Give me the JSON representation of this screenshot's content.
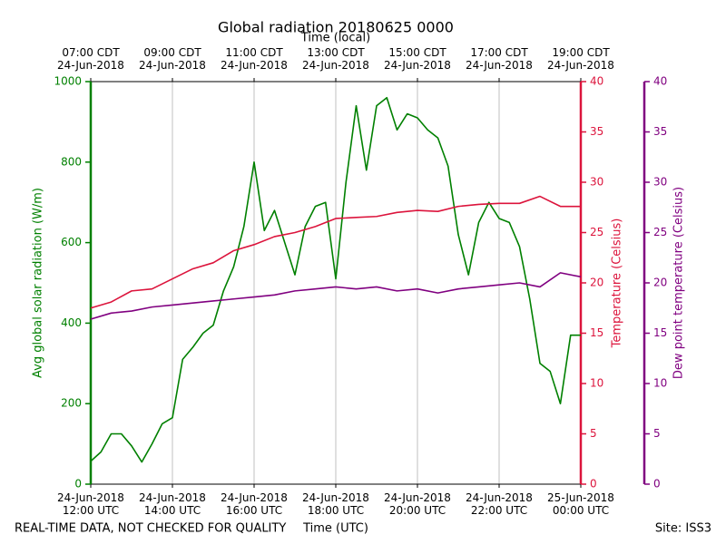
{
  "chart_data": {
    "type": "line",
    "title": "Global radiation 20180625 0000",
    "x_label": "Time (UTC)",
    "x2_label": "Time (local)",
    "footer_left": "REAL-TIME DATA, NOT CHECKED FOR QUALITY",
    "footer_right": "Site: ISS3",
    "y_label": "Avg global solar radiation (W/m)",
    "y2_label": "Temperature (Celsius)",
    "y3_label": "Dew point temperature (Celsius)",
    "xlim": [
      "2018-06-24T12:00",
      "2018-06-25T00:00"
    ],
    "xticks": [
      {
        "value": "2018-06-24T12:00",
        "label": "24-Jun-2018\n12:00 UTC"
      },
      {
        "value": "2018-06-24T14:00",
        "label": "24-Jun-2018\n14:00 UTC"
      },
      {
        "value": "2018-06-24T16:00",
        "label": "24-Jun-2018\n16:00 UTC"
      },
      {
        "value": "2018-06-24T18:00",
        "label": "24-Jun-2018\n18:00 UTC"
      },
      {
        "value": "2018-06-24T20:00",
        "label": "24-Jun-2018\n20:00 UTC"
      },
      {
        "value": "2018-06-24T22:00",
        "label": "24-Jun-2018\n22:00 UTC"
      },
      {
        "value": "2018-06-25T00:00",
        "label": "25-Jun-2018\n00:00 UTC"
      }
    ],
    "x2ticks": [
      {
        "value": "2018-06-24T12:00",
        "label": "07:00 CDT\n24-Jun-2018"
      },
      {
        "value": "2018-06-24T14:00",
        "label": "09:00 CDT\n24-Jun-2018"
      },
      {
        "value": "2018-06-24T16:00",
        "label": "11:00 CDT\n24-Jun-2018"
      },
      {
        "value": "2018-06-24T18:00",
        "label": "13:00 CDT\n24-Jun-2018"
      },
      {
        "value": "2018-06-24T20:00",
        "label": "15:00 CDT\n24-Jun-2018"
      },
      {
        "value": "2018-06-24T22:00",
        "label": "17:00 CDT\n24-Jun-2018"
      },
      {
        "value": "2018-06-25T00:00",
        "label": "19:00 CDT\n24-Jun-2018"
      }
    ],
    "ylim": [
      0,
      1000
    ],
    "yticks": [
      0,
      200,
      400,
      600,
      800,
      1000
    ],
    "y_color": "#008000",
    "y2lim": [
      0,
      40
    ],
    "y2ticks": [
      0,
      5,
      10,
      15,
      20,
      25,
      30,
      35,
      40
    ],
    "y2_color": "#dc143c",
    "y3lim": [
      0,
      40
    ],
    "y3ticks": [
      0,
      5,
      10,
      15,
      20,
      25,
      30,
      35,
      40
    ],
    "y3_color": "#800080",
    "grid": true,
    "series": [
      {
        "name": "Avg global solar radiation",
        "color": "#008000",
        "axis": "y",
        "x": [
          "2018-06-24T12:00",
          "2018-06-24T12:15",
          "2018-06-24T12:30",
          "2018-06-24T12:45",
          "2018-06-24T13:00",
          "2018-06-24T13:15",
          "2018-06-24T13:30",
          "2018-06-24T13:45",
          "2018-06-24T14:00",
          "2018-06-24T14:15",
          "2018-06-24T14:30",
          "2018-06-24T14:45",
          "2018-06-24T15:00",
          "2018-06-24T15:15",
          "2018-06-24T15:30",
          "2018-06-24T15:45",
          "2018-06-24T16:00",
          "2018-06-24T16:15",
          "2018-06-24T16:30",
          "2018-06-24T16:45",
          "2018-06-24T17:00",
          "2018-06-24T17:15",
          "2018-06-24T17:30",
          "2018-06-24T17:45",
          "2018-06-24T18:00",
          "2018-06-24T18:15",
          "2018-06-24T18:30",
          "2018-06-24T18:45",
          "2018-06-24T19:00",
          "2018-06-24T19:15",
          "2018-06-24T19:30",
          "2018-06-24T19:45",
          "2018-06-24T20:00",
          "2018-06-24T20:15",
          "2018-06-24T20:30",
          "2018-06-24T20:45",
          "2018-06-24T21:00",
          "2018-06-24T21:15",
          "2018-06-24T21:30",
          "2018-06-24T21:45",
          "2018-06-24T22:00",
          "2018-06-24T22:15",
          "2018-06-24T22:30",
          "2018-06-24T22:45",
          "2018-06-24T23:00",
          "2018-06-24T23:15",
          "2018-06-24T23:30",
          "2018-06-24T23:45",
          "2018-06-25T00:00"
        ],
        "values": [
          57,
          80,
          125,
          125,
          95,
          55,
          100,
          150,
          165,
          310,
          340,
          375,
          395,
          480,
          540,
          640,
          800,
          630,
          680,
          600,
          520,
          640,
          690,
          700,
          510,
          750,
          940,
          780,
          940,
          960,
          880,
          920,
          910,
          880,
          860,
          790,
          620,
          520,
          650,
          700,
          660,
          650,
          590,
          460,
          300,
          280,
          200,
          370,
          370
        ]
      },
      {
        "name": "Temperature",
        "color": "#dc143c",
        "axis": "y2",
        "x": [
          "2018-06-24T12:00",
          "2018-06-24T12:30",
          "2018-06-24T13:00",
          "2018-06-24T13:30",
          "2018-06-24T14:00",
          "2018-06-24T14:30",
          "2018-06-24T15:00",
          "2018-06-24T15:30",
          "2018-06-24T16:00",
          "2018-06-24T16:30",
          "2018-06-24T17:00",
          "2018-06-24T17:30",
          "2018-06-24T18:00",
          "2018-06-24T18:30",
          "2018-06-24T19:00",
          "2018-06-24T19:30",
          "2018-06-24T20:00",
          "2018-06-24T20:30",
          "2018-06-24T21:00",
          "2018-06-24T21:30",
          "2018-06-24T22:00",
          "2018-06-24T22:30",
          "2018-06-24T23:00",
          "2018-06-24T23:30",
          "2018-06-25T00:00"
        ],
        "values": [
          17.5,
          18.1,
          19.2,
          19.4,
          20.4,
          21.4,
          22.0,
          23.2,
          23.8,
          24.6,
          25.0,
          25.6,
          26.4,
          26.5,
          26.6,
          27.0,
          27.2,
          27.1,
          27.6,
          27.8,
          27.9,
          27.9,
          28.6,
          27.6,
          27.6
        ]
      },
      {
        "name": "Dew point temperature",
        "color": "#800080",
        "axis": "y3",
        "x": [
          "2018-06-24T12:00",
          "2018-06-24T12:30",
          "2018-06-24T13:00",
          "2018-06-24T13:30",
          "2018-06-24T14:00",
          "2018-06-24T14:30",
          "2018-06-24T15:00",
          "2018-06-24T15:30",
          "2018-06-24T16:00",
          "2018-06-24T16:30",
          "2018-06-24T17:00",
          "2018-06-24T17:30",
          "2018-06-24T18:00",
          "2018-06-24T18:30",
          "2018-06-24T19:00",
          "2018-06-24T19:30",
          "2018-06-24T20:00",
          "2018-06-24T20:30",
          "2018-06-24T21:00",
          "2018-06-24T21:30",
          "2018-06-24T22:00",
          "2018-06-24T22:30",
          "2018-06-24T23:00",
          "2018-06-24T23:30",
          "2018-06-25T00:00"
        ],
        "values": [
          16.4,
          17.0,
          17.2,
          17.6,
          17.8,
          18.0,
          18.2,
          18.4,
          18.6,
          18.8,
          19.2,
          19.4,
          19.6,
          19.4,
          19.6,
          19.2,
          19.4,
          19.0,
          19.4,
          19.6,
          19.8,
          20.0,
          19.6,
          21.0,
          20.6
        ]
      }
    ]
  }
}
